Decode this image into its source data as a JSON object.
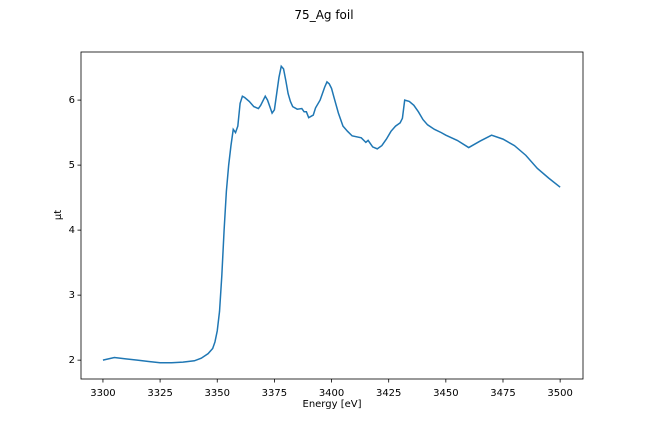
{
  "chart_data": {
    "type": "line",
    "title": "75_Ag foil",
    "x_label": "Energy [eV]",
    "y_label": "μt",
    "x": [
      3300,
      3305,
      3310,
      3315,
      3320,
      3325,
      3330,
      3335,
      3340,
      3343,
      3346,
      3348,
      3349,
      3350,
      3351,
      3352,
      3353,
      3354,
      3355,
      3356,
      3357,
      3358,
      3359,
      3360,
      3361,
      3362,
      3364,
      3366,
      3368,
      3369,
      3371,
      3372,
      3374,
      3375,
      3376,
      3377,
      3378,
      3379,
      3380,
      3381,
      3382,
      3383,
      3385,
      3387,
      3388,
      3389,
      3390,
      3392,
      3393,
      3395,
      3396,
      3397,
      3398,
      3399,
      3400,
      3401,
      3403,
      3405,
      3407,
      3409,
      3413,
      3415,
      3416,
      3418,
      3420,
      3422,
      3424,
      3426,
      3428,
      3430,
      3431,
      3432,
      3434,
      3436,
      3438,
      3440,
      3442,
      3445,
      3448,
      3450,
      3455,
      3460,
      3465,
      3470,
      3475,
      3480,
      3485,
      3490,
      3495,
      3500
    ],
    "series": [
      {
        "color": "#1f77b4",
        "values": [
          2.0,
          2.04,
          2.02,
          2.0,
          1.98,
          1.96,
          1.96,
          1.97,
          1.99,
          2.03,
          2.1,
          2.18,
          2.28,
          2.45,
          2.75,
          3.3,
          4.0,
          4.6,
          5.0,
          5.3,
          5.55,
          5.5,
          5.6,
          5.95,
          6.06,
          6.04,
          5.98,
          5.9,
          5.87,
          5.92,
          6.06,
          6.0,
          5.8,
          5.85,
          6.1,
          6.35,
          6.52,
          6.48,
          6.3,
          6.1,
          5.98,
          5.9,
          5.86,
          5.87,
          5.82,
          5.82,
          5.73,
          5.77,
          5.88,
          6.0,
          6.1,
          6.2,
          6.28,
          6.25,
          6.18,
          6.05,
          5.8,
          5.6,
          5.52,
          5.45,
          5.42,
          5.35,
          5.38,
          5.28,
          5.25,
          5.3,
          5.4,
          5.52,
          5.6,
          5.65,
          5.72,
          6.0,
          5.98,
          5.92,
          5.82,
          5.7,
          5.62,
          5.55,
          5.5,
          5.46,
          5.38,
          5.27,
          5.37,
          5.46,
          5.4,
          5.3,
          5.15,
          4.95,
          4.8,
          4.66
        ]
      }
    ],
    "xlim": [
      3290.4,
      3510
    ],
    "ylim": [
      1.71,
      6.74
    ],
    "xticks": [
      3300,
      3325,
      3350,
      3375,
      3400,
      3425,
      3450,
      3475,
      3500
    ],
    "yticks": [
      2,
      3,
      4,
      5,
      6
    ]
  }
}
